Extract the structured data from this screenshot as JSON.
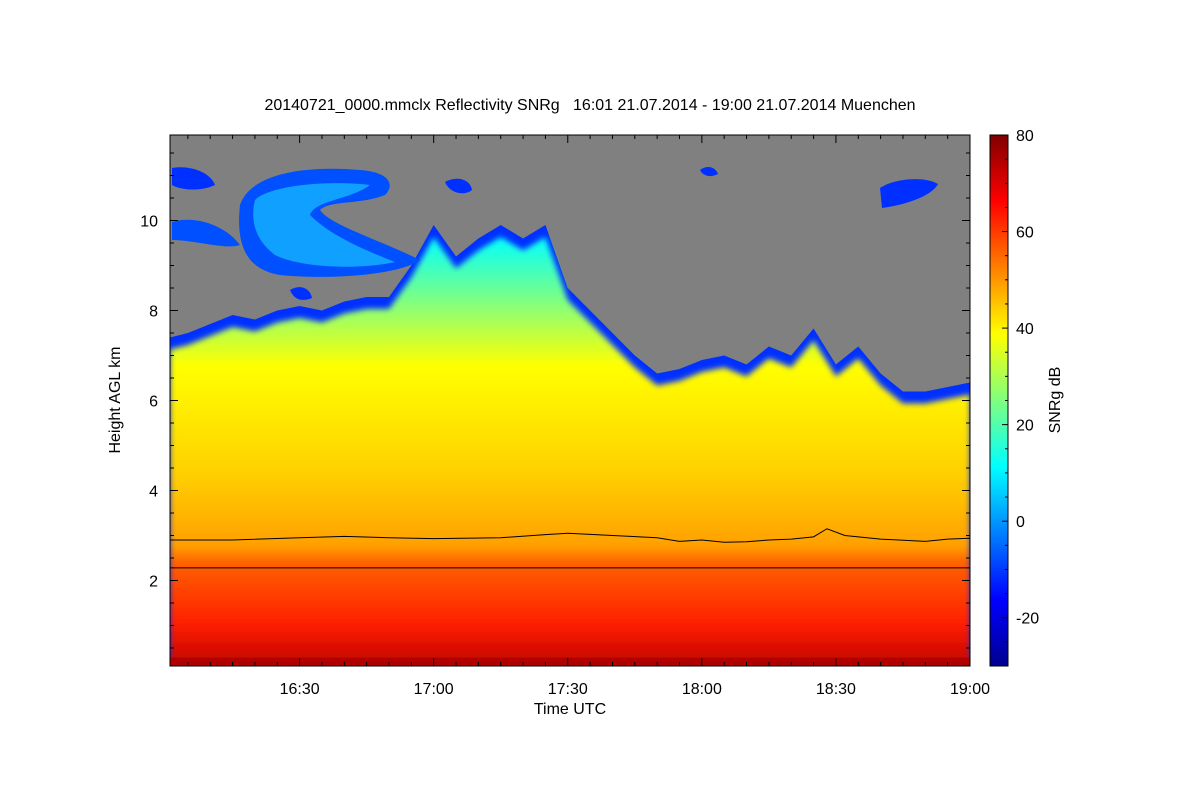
{
  "chart_data": {
    "type": "heatmap",
    "title": "20140721_0000.mmclx Reflectivity SNRg   16:01 21.07.2014 - 19:00 21.07.2014 Muenchen",
    "xlabel": "Time UTC",
    "ylabel": "Height AGL km",
    "x_ticks": [
      "16:30",
      "17:00",
      "17:30",
      "18:00",
      "18:30",
      "19:00"
    ],
    "x_tick_minutes": [
      990,
      1020,
      1050,
      1080,
      1110,
      1140
    ],
    "xlim_minutes": [
      961,
      1140
    ],
    "y_ticks": [
      2,
      4,
      6,
      8,
      10
    ],
    "ylim": [
      0.1,
      11.9
    ],
    "colorbar": {
      "label": "SNRg dB",
      "ticks": [
        -20,
        0,
        20,
        40,
        60,
        80
      ],
      "range": [
        -30,
        80
      ],
      "colormap": "jet"
    },
    "no_data_color": "#808080",
    "cloud_top_km": [
      [
        961,
        7.4
      ],
      [
        965,
        7.5
      ],
      [
        970,
        7.7
      ],
      [
        975,
        7.9
      ],
      [
        980,
        7.8
      ],
      [
        985,
        8.0
      ],
      [
        990,
        8.1
      ],
      [
        995,
        8.0
      ],
      [
        1000,
        8.2
      ],
      [
        1005,
        8.3
      ],
      [
        1010,
        8.3
      ],
      [
        1015,
        9.0
      ],
      [
        1020,
        9.9
      ],
      [
        1025,
        9.2
      ],
      [
        1030,
        9.6
      ],
      [
        1035,
        9.9
      ],
      [
        1040,
        9.6
      ],
      [
        1045,
        9.9
      ],
      [
        1050,
        8.5
      ],
      [
        1055,
        8.0
      ],
      [
        1060,
        7.5
      ],
      [
        1065,
        7.0
      ],
      [
        1070,
        6.6
      ],
      [
        1075,
        6.7
      ],
      [
        1080,
        6.9
      ],
      [
        1085,
        7.0
      ],
      [
        1090,
        6.8
      ],
      [
        1095,
        7.2
      ],
      [
        1100,
        7.0
      ],
      [
        1105,
        7.6
      ],
      [
        1110,
        6.8
      ],
      [
        1115,
        7.2
      ],
      [
        1120,
        6.6
      ],
      [
        1125,
        6.2
      ],
      [
        1130,
        6.2
      ],
      [
        1135,
        6.3
      ],
      [
        1140,
        6.4
      ]
    ],
    "melting_layer_km": [
      [
        961,
        2.9
      ],
      [
        975,
        2.9
      ],
      [
        990,
        2.95
      ],
      [
        1000,
        2.98
      ],
      [
        1010,
        2.95
      ],
      [
        1020,
        2.93
      ],
      [
        1035,
        2.95
      ],
      [
        1045,
        3.02
      ],
      [
        1050,
        3.05
      ],
      [
        1060,
        3.0
      ],
      [
        1070,
        2.95
      ],
      [
        1075,
        2.87
      ],
      [
        1080,
        2.9
      ],
      [
        1085,
        2.85
      ],
      [
        1090,
        2.86
      ],
      [
        1095,
        2.9
      ],
      [
        1100,
        2.92
      ],
      [
        1105,
        2.97
      ],
      [
        1108,
        3.15
      ],
      [
        1112,
        3.0
      ],
      [
        1120,
        2.92
      ],
      [
        1130,
        2.87
      ],
      [
        1135,
        2.92
      ],
      [
        1140,
        2.94
      ]
    ],
    "reference_line_km": 2.28
  }
}
